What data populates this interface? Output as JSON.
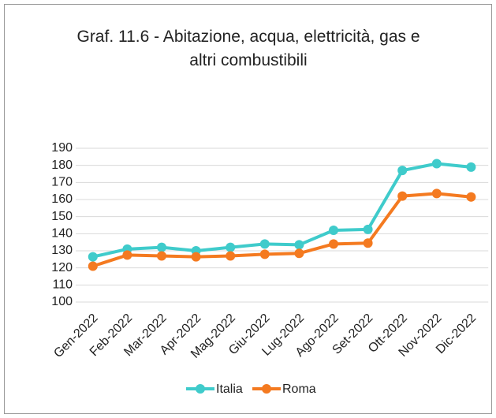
{
  "chart_data": {
    "type": "line",
    "title": "Graf. 11.6 - Abitazione, acqua, elettricità, gas e altri combustibili",
    "categories": [
      "Gen-2022",
      "Feb-2022",
      "Mar-2022",
      "Apr-2022",
      "Mag-2022",
      "Giu-2022",
      "Lug-2022",
      "Ago-2022",
      "Set-2022",
      "Ott-2022",
      "Nov-2022",
      "Dic-2022"
    ],
    "series": [
      {
        "name": "Italia",
        "color": "#3fcbcb",
        "values": [
          126.5,
          131,
          132,
          130,
          132,
          134,
          133.5,
          142,
          142.5,
          177,
          181,
          179
        ]
      },
      {
        "name": "Roma",
        "color": "#f47a20",
        "values": [
          121,
          127.5,
          127,
          126.5,
          127,
          128,
          128.5,
          134,
          134.5,
          162,
          163.5,
          161.5
        ]
      }
    ],
    "ylim": [
      100,
      190
    ],
    "yticks": [
      100,
      110,
      120,
      130,
      140,
      150,
      160,
      170,
      180,
      190
    ],
    "grid": true,
    "legend": "bottom"
  }
}
